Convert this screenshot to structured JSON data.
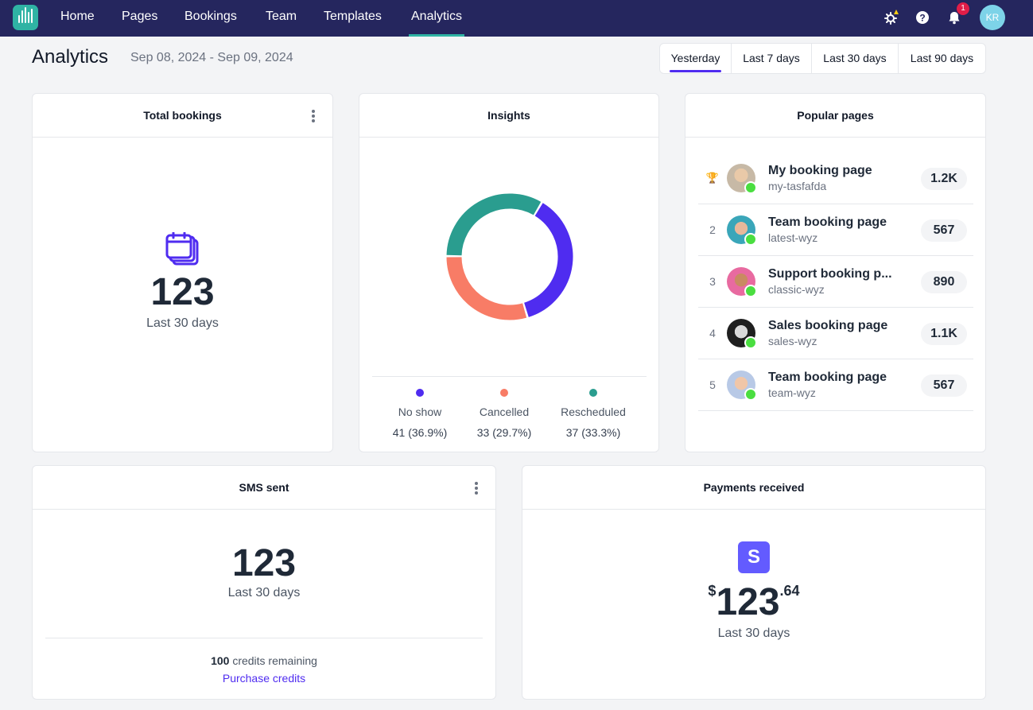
{
  "nav": {
    "items": [
      "Home",
      "Pages",
      "Bookings",
      "Team",
      "Templates",
      "Analytics"
    ],
    "active": "Analytics",
    "notification_count": "1",
    "user_initials": "KR"
  },
  "header": {
    "title": "Analytics",
    "date_range": "Sep 08, 2024 - Sep 09, 2024",
    "ranges": [
      "Yesterday",
      "Last 7 days",
      "Last 30 days",
      "Last 90 days"
    ],
    "active_range": "Yesterday"
  },
  "total_bookings": {
    "title": "Total bookings",
    "value": "123",
    "period": "Last 30 days"
  },
  "insights": {
    "title": "Insights",
    "items": [
      {
        "label": "No show",
        "value": "41 (36.9%)",
        "count": 41,
        "color": "#4f2cf0"
      },
      {
        "label": "Cancelled",
        "value": "33 (29.7%)",
        "count": 33,
        "color": "#f87c66"
      },
      {
        "label": "Rescheduled",
        "value": "37 (33.3%)",
        "count": 37,
        "color": "#2a9d8f"
      }
    ]
  },
  "popular_pages": {
    "title": "Popular pages",
    "rows": [
      {
        "rank": "🏆",
        "name": "My booking page",
        "slug": "my-tasfafda",
        "count": "1.2K"
      },
      {
        "rank": "2",
        "name": "Team booking page",
        "slug": "latest-wyz",
        "count": "567"
      },
      {
        "rank": "3",
        "name": "Support booking p...",
        "slug": "classic-wyz",
        "count": "890"
      },
      {
        "rank": "4",
        "name": "Sales booking page",
        "slug": "sales-wyz",
        "count": "1.1K"
      },
      {
        "rank": "5",
        "name": "Team booking page",
        "slug": "team-wyz",
        "count": "567"
      }
    ]
  },
  "sms": {
    "title": "SMS sent",
    "value": "123",
    "period": "Last 30 days",
    "credits": "100",
    "credits_label": "credits remaining",
    "purchase_label": "Purchase credits"
  },
  "payments": {
    "title": "Payments received",
    "stripe_letter": "S",
    "currency": "$",
    "whole": "123",
    "cents": ".64",
    "period": "Last 30 days"
  },
  "colors": {
    "nav_bg": "#25265e",
    "accent": "#4f2cf0",
    "teal": "#2fb3a4"
  }
}
